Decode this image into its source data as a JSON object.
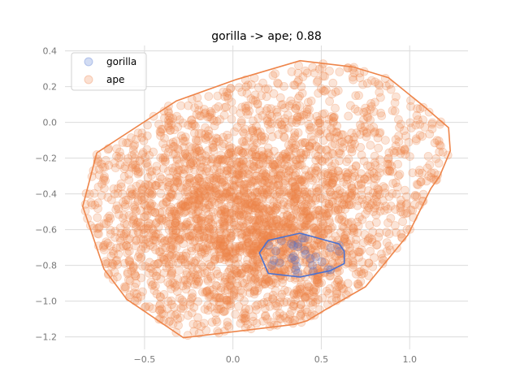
{
  "chart_data": {
    "type": "scatter",
    "title": "gorilla -> ape; 0.88",
    "xlabel": "",
    "ylabel": "",
    "xlim": [
      -0.95,
      1.33
    ],
    "ylim": [
      -1.27,
      0.43
    ],
    "xticks": [
      -0.5,
      0.0,
      0.5,
      1.0
    ],
    "xtick_labels": [
      "−0.5",
      "0.0",
      "0.5",
      "1.0"
    ],
    "yticks": [
      0.4,
      0.2,
      0.0,
      -0.2,
      -0.4,
      -0.6,
      -0.8,
      -1.0,
      -1.2
    ],
    "ytick_labels": [
      "0.4",
      "0.2",
      "0.0",
      "−0.2",
      "−0.4",
      "−0.6",
      "−0.8",
      "−1.0",
      "−1.2"
    ],
    "grid": true,
    "legend_position": "top-left",
    "series": [
      {
        "name": "gorilla",
        "color": "#4c72d0",
        "point_count": 30,
        "hull": [
          [
            0.38,
            -0.62
          ],
          [
            0.6,
            -0.68
          ],
          [
            0.63,
            -0.72
          ],
          [
            0.63,
            -0.79
          ],
          [
            0.55,
            -0.83
          ],
          [
            0.38,
            -0.865
          ],
          [
            0.2,
            -0.845
          ],
          [
            0.15,
            -0.73
          ],
          [
            0.2,
            -0.66
          ],
          [
            0.38,
            -0.62
          ]
        ]
      },
      {
        "name": "ape",
        "color": "#ee854a",
        "point_count": 3000,
        "hull": [
          [
            -0.77,
            -0.17
          ],
          [
            -0.32,
            0.12
          ],
          [
            0.02,
            0.24
          ],
          [
            0.38,
            0.345
          ],
          [
            0.68,
            0.31
          ],
          [
            0.88,
            0.25
          ],
          [
            1.08,
            0.09
          ],
          [
            1.22,
            -0.03
          ],
          [
            1.23,
            -0.16
          ],
          [
            1.17,
            -0.3
          ],
          [
            1.12,
            -0.37
          ],
          [
            0.99,
            -0.63
          ],
          [
            0.75,
            -0.92
          ],
          [
            0.52,
            -1.05
          ],
          [
            0.42,
            -1.11
          ],
          [
            0.35,
            -1.13
          ],
          [
            -0.28,
            -1.205
          ],
          [
            -0.6,
            -0.99
          ],
          [
            -0.73,
            -0.82
          ],
          [
            -0.85,
            -0.47
          ],
          [
            -0.77,
            -0.17
          ]
        ]
      }
    ]
  }
}
